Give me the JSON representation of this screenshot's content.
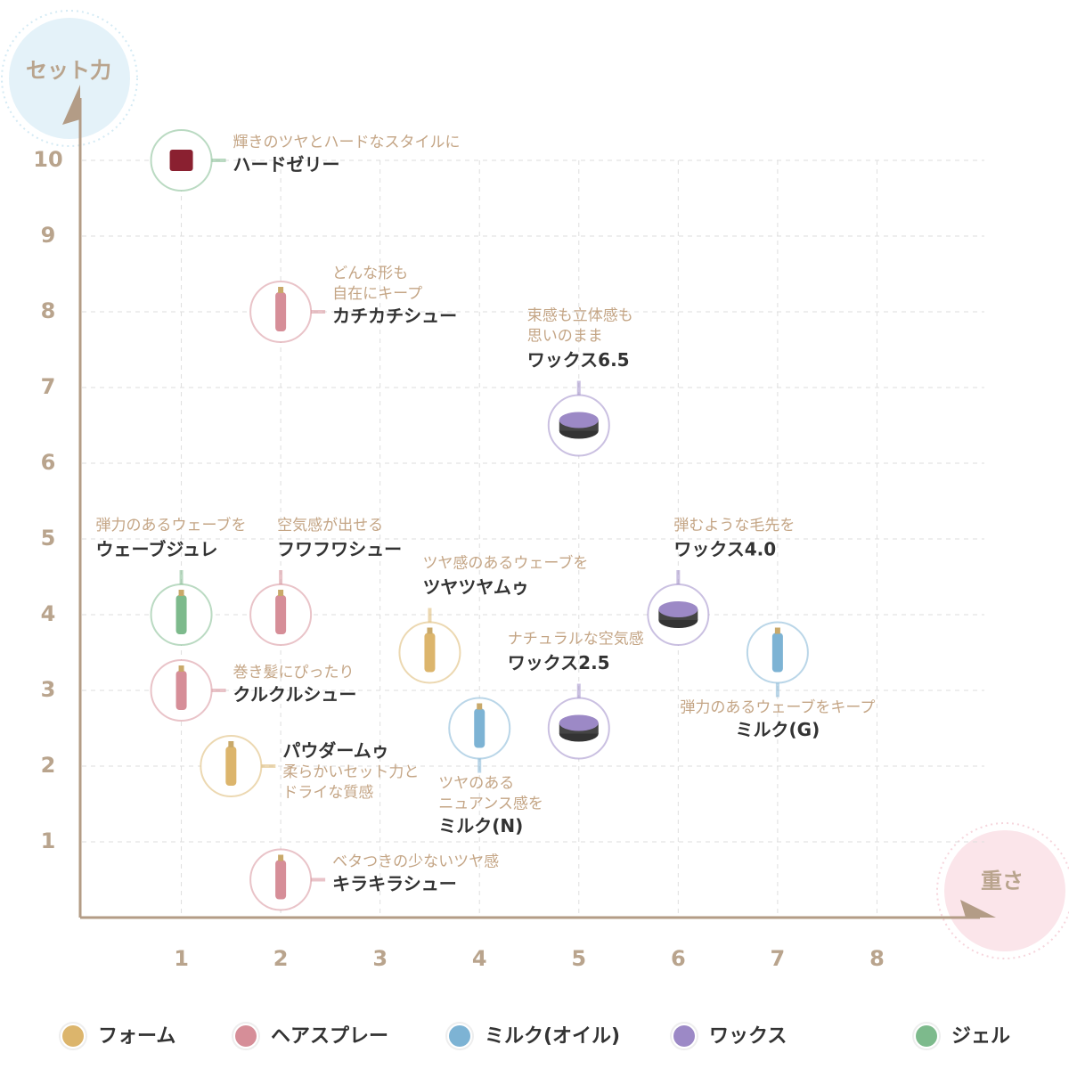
{
  "chart_data": {
    "type": "scatter",
    "xlabel": "重さ",
    "ylabel": "セット力",
    "xlim": [
      0,
      9
    ],
    "ylim": [
      0,
      11
    ],
    "xticks": [
      1,
      2,
      3,
      4,
      5,
      6,
      7,
      8
    ],
    "yticks": [
      1,
      2,
      3,
      4,
      5,
      6,
      7,
      8,
      9,
      10
    ],
    "grid": true,
    "series": [
      {
        "name": "フォーム",
        "color": "#dcb56c",
        "points": [
          {
            "label": "ツヤツヤムゥ",
            "tagline": [
              "ツヤ感のあるウェーブを"
            ],
            "x": 3.5,
            "y": 3.5
          },
          {
            "label": "パウダームゥ",
            "tagline": [
              "柔らかいセット力と",
              "ドライな質感"
            ],
            "x": 1.5,
            "y": 2
          }
        ]
      },
      {
        "name": "ヘアスプレー",
        "color": "#d68e98",
        "points": [
          {
            "label": "カチカチシュー",
            "tagline": [
              "どんな形も",
              "自在にキープ"
            ],
            "x": 2,
            "y": 8
          },
          {
            "label": "フワフワシュー",
            "tagline": [
              "空気感が出せる"
            ],
            "x": 2,
            "y": 4
          },
          {
            "label": "クルクルシュー",
            "tagline": [
              "巻き髪にぴったり"
            ],
            "x": 1,
            "y": 3
          },
          {
            "label": "キラキラシュー",
            "tagline": [
              "ベタつきの少ないツヤ感"
            ],
            "x": 2,
            "y": 0.5
          }
        ]
      },
      {
        "name": "ミルク(オイル)",
        "color": "#7db3d4",
        "points": [
          {
            "label": "ミルク(N)",
            "tagline": [
              "ツヤのある",
              "ニュアンス感を"
            ],
            "x": 4,
            "y": 2.5
          },
          {
            "label": "ミルク(G)",
            "tagline": [
              "弾力のあるウェーブをキープ"
            ],
            "x": 7,
            "y": 3.5
          }
        ]
      },
      {
        "name": "ワックス",
        "color": "#9c89c6",
        "points": [
          {
            "label": "ワックス6.5",
            "tagline": [
              "束感も立体感も",
              "思いのまま"
            ],
            "x": 5,
            "y": 6.5
          },
          {
            "label": "ワックス4.0",
            "tagline": [
              "弾むような毛先を"
            ],
            "x": 6,
            "y": 4
          },
          {
            "label": "ワックス2.5",
            "tagline": [
              "ナチュラルな空気感"
            ],
            "x": 5,
            "y": 2.5
          }
        ]
      },
      {
        "name": "ジェル",
        "color": "#7dba8c",
        "points": [
          {
            "label": "ハードゼリー",
            "tagline": [
              "輝きのツヤとハードなスタイルに"
            ],
            "x": 1,
            "y": 10
          },
          {
            "label": "ウェーブジュレ",
            "tagline": [
              "弾力のあるウェーブを"
            ],
            "x": 1,
            "y": 4
          }
        ]
      }
    ]
  }
}
